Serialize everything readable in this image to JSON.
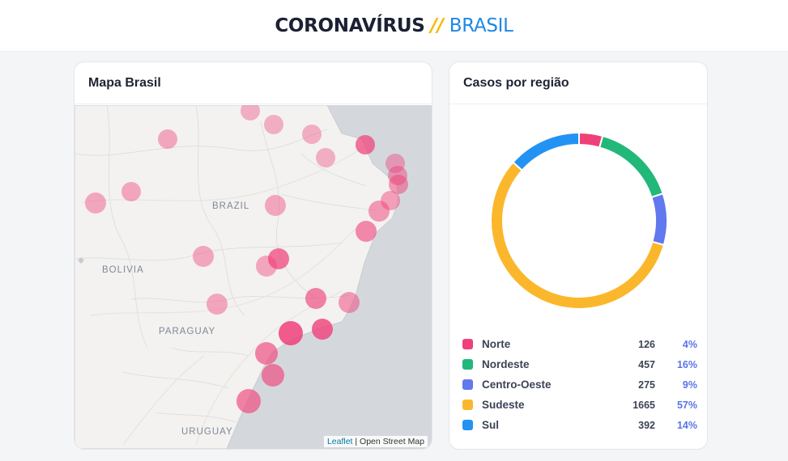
{
  "header": {
    "title_main": "CORONAVÍRUS",
    "separator": "//",
    "title_sub": "BRASIL"
  },
  "map_card": {
    "title": "Mapa Brasil",
    "labels": {
      "brazil": "BRAZIL",
      "bolivia": "BOLIVIA",
      "paraguay": "PARAGUAY",
      "uruguay": "URUGUAY"
    },
    "attribution": {
      "link": "Leaflet",
      "separator": " | ",
      "text": "Open Street Map"
    }
  },
  "chart_card": {
    "title": "Casos por região"
  },
  "colors": {
    "norte": "#f0407a",
    "nordeste": "#22b87a",
    "centro_oeste": "#6178ee",
    "sudeste": "#fbb72b",
    "sul": "#2393f3",
    "marker": "#f0407a"
  },
  "chart_data": {
    "type": "pie",
    "title": "Casos por região",
    "categories": [
      "Norte",
      "Nordeste",
      "Centro-Oeste",
      "Sudeste",
      "Sul"
    ],
    "values": [
      126,
      457,
      275,
      1665,
      392
    ],
    "percent_labels": [
      "4%",
      "16%",
      "9%",
      "57%",
      "14%"
    ],
    "colors": [
      "#f0407a",
      "#22b87a",
      "#6178ee",
      "#fbb72b",
      "#2393f3"
    ],
    "donut": true,
    "legend_position": "bottom"
  }
}
